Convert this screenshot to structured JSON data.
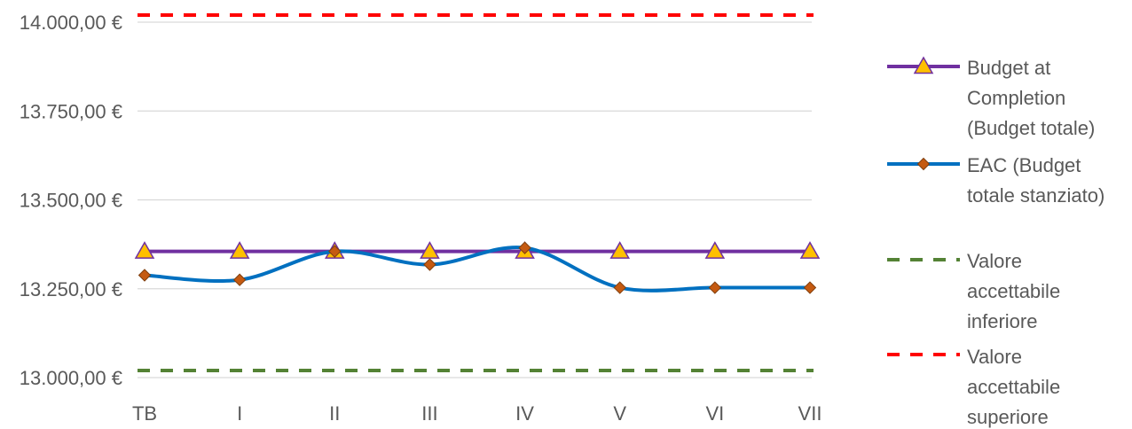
{
  "chart_data": {
    "type": "line",
    "title": "",
    "xlabel": "",
    "ylabel": "",
    "categories": [
      "TB",
      "I",
      "II",
      "III",
      "IV",
      "V",
      "VI",
      "VII"
    ],
    "ylim": [
      13000,
      14000
    ],
    "yticks": [
      13000,
      13250,
      13500,
      13750,
      14000
    ],
    "ytick_labels": [
      "13.000,00 €",
      "13.250,00 €",
      "13.500,00 €",
      "13.750,00 €",
      "14.000,00 €"
    ],
    "grid": true,
    "legend_position": "right",
    "series": [
      {
        "name": "Budget at Completion (Budget totale)",
        "legend_lines": [
          "Budget at",
          "Completion",
          "(Budget totale)"
        ],
        "values": [
          13355,
          13355,
          13355,
          13355,
          13355,
          13355,
          13355,
          13355
        ],
        "color": "#7030a0",
        "marker": "triangle",
        "marker_color": "#ffc000",
        "line_style": "solid",
        "smooth": false
      },
      {
        "name": "EAC (Budget totale stanziato)",
        "legend_lines": [
          "EAC (Budget",
          "totale stanziato)"
        ],
        "values": [
          13288,
          13275,
          13355,
          13318,
          13365,
          13253,
          13253,
          13253
        ],
        "color": "#0070c0",
        "marker": "diamond",
        "marker_color": "#c55a11",
        "line_style": "solid",
        "smooth": true
      },
      {
        "name": "Valore accettabile inferiore",
        "legend_lines": [
          "Valore",
          "accettabile",
          "inferiore"
        ],
        "values": [
          13020,
          13020,
          13020,
          13020,
          13020,
          13020,
          13020,
          13020
        ],
        "color": "#548235",
        "marker": "none",
        "line_style": "dashed",
        "smooth": false
      },
      {
        "name": "Valore accettabile superiore",
        "legend_lines": [
          "Valore",
          "accettabile",
          "superiore"
        ],
        "values": [
          14020,
          14020,
          14020,
          14020,
          14020,
          14020,
          14020,
          14020
        ],
        "color": "#ff0000",
        "marker": "none",
        "line_style": "dashed",
        "smooth": false
      }
    ]
  }
}
